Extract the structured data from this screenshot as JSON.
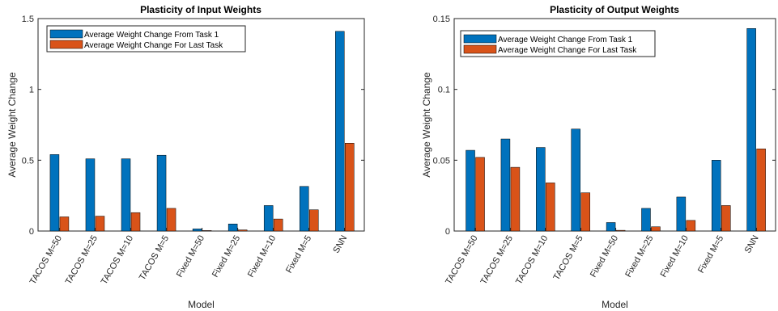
{
  "colors": {
    "series_1": "#0072BD",
    "series_2": "#D95319",
    "axis": "#262626",
    "background": "#ffffff"
  },
  "chart_data": [
    {
      "type": "bar",
      "title": "Plasticity of Input Weights",
      "xlabel": "Model",
      "ylabel": "Average Weight Change",
      "categories": [
        "TACOS M=50",
        "TACOS M=25",
        "TACOS M=10",
        "TACOS M=5",
        "Fixed M=50",
        "Fixed M=25",
        "Fixed M=10",
        "Fixed M=5",
        "SNN"
      ],
      "series": [
        {
          "name": "Average Weight Change From Task 1",
          "values": [
            0.54,
            0.51,
            0.51,
            0.535,
            0.015,
            0.05,
            0.18,
            0.315,
            1.41
          ]
        },
        {
          "name": "Average Weight Change For Last Task",
          "values": [
            0.1,
            0.105,
            0.13,
            0.16,
            0.0,
            0.008,
            0.085,
            0.15,
            0.62
          ]
        }
      ],
      "ylim": [
        0,
        1.5
      ],
      "yticks": [
        "0",
        "0.5",
        "1",
        "1.5"
      ],
      "ytick_values": [
        0,
        0.5,
        1,
        1.5
      ],
      "grid": false,
      "legend_position": "top-left"
    },
    {
      "type": "bar",
      "title": "Plasticity of Output Weights",
      "xlabel": "Model",
      "ylabel": "Average Weight Change",
      "categories": [
        "TACOS M=50",
        "TACOS M=25",
        "TACOS M=10",
        "TACOS M=5",
        "Fixed M=50",
        "Fixed M=25",
        "Fixed M=10",
        "Fixed M=5",
        "SNN"
      ],
      "series": [
        {
          "name": "Average Weight Change From Task 1",
          "values": [
            0.057,
            0.065,
            0.059,
            0.072,
            0.006,
            0.016,
            0.024,
            0.05,
            0.143
          ]
        },
        {
          "name": "Average Weight Change For Last Task",
          "values": [
            0.052,
            0.045,
            0.034,
            0.027,
            0.0005,
            0.003,
            0.0075,
            0.018,
            0.058
          ]
        }
      ],
      "ylim": [
        0,
        0.15
      ],
      "yticks": [
        "0",
        "0.05",
        "0.1",
        "0.15"
      ],
      "ytick_values": [
        0,
        0.05,
        0.1,
        0.15
      ],
      "grid": false,
      "legend_position": "top-left"
    }
  ]
}
